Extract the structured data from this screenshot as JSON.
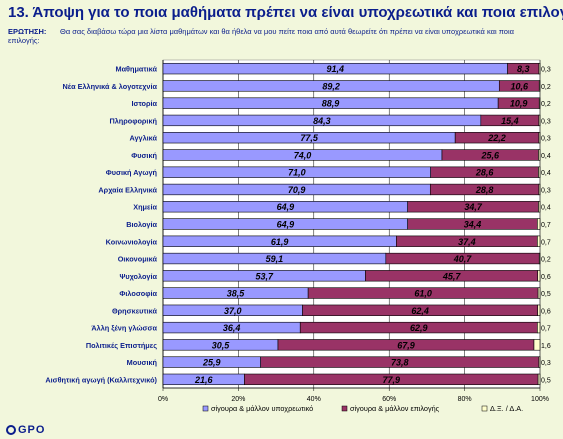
{
  "header": {
    "title": "13.  Άποψη για το ποια μαθήματα πρέπει να είναι υποχρεωτικά και ποια επιλογής",
    "question_label": "ΕΡΩΤΗΣΗ:",
    "question_text": "Θα σας διαβάσω τώρα μια λίστα μαθημάτων και θα ήθελα να μου πείτε ποια από αυτά θεωρείτε ότι πρέπει να είναι υποχρεωτικά και ποια",
    "question_text_cont": "επιλογής:"
  },
  "logo": {
    "text": "GPO"
  },
  "colors": {
    "compulsory": "#9999ff",
    "elective": "#993366",
    "dk": "#ffffcc",
    "border": "#000000",
    "grid": "#000000",
    "label": "#0b1e8c"
  },
  "chart_data": {
    "type": "bar",
    "orientation": "horizontal",
    "stacked": true,
    "xlim": [
      0,
      100
    ],
    "x_ticks": [
      "0%",
      "20%",
      "40%",
      "60%",
      "80%",
      "100%"
    ],
    "categories": [
      "Μαθηματικά",
      "Νέα Ελληνικά & λογοτεχνία",
      "Ιστορία",
      "Πληροφορική",
      "Αγγλικά",
      "Φυσική",
      "Φυσική Αγωγή",
      "Αρχαία Ελληνικά",
      "Χημεία",
      "Βιολογία",
      "Κοινωνιολογία",
      "Οικονομικά",
      "Ψυχολογία",
      "Φιλοσοφία",
      "Θρησκευτικά",
      "Άλλη ξένη γλώσσα",
      "Πολιτικές Επιστήμες",
      "Μουσική",
      "Αισθητική αγωγή (Καλλιτεχνικό)"
    ],
    "series": [
      {
        "name": "σίγουρα & μάλλον υποχρεωτικό",
        "values": [
          91.4,
          89.2,
          88.9,
          84.3,
          77.5,
          74.0,
          71.0,
          70.9,
          64.9,
          64.9,
          61.9,
          59.1,
          53.7,
          38.5,
          37.0,
          36.4,
          30.5,
          25.9,
          21.6
        ],
        "labels": [
          "91,4",
          "89,2",
          "88,9",
          "84,3",
          "77,5",
          "74,0",
          "71,0",
          "70,9",
          "64,9",
          "64,9",
          "61,9",
          "59,1",
          "53,7",
          "38,5",
          "37,0",
          "36,4",
          "30,5",
          "25,9",
          "21,6"
        ]
      },
      {
        "name": "σίγουρα & μάλλον επιλογής",
        "values": [
          8.3,
          10.6,
          10.9,
          15.4,
          22.2,
          25.6,
          28.6,
          28.8,
          34.7,
          34.4,
          37.4,
          40.7,
          45.7,
          61.0,
          62.4,
          62.9,
          67.9,
          73.8,
          77.9
        ],
        "labels": [
          "8,3",
          "10,6",
          "10,9",
          "15,4",
          "22,2",
          "25,6",
          "28,6",
          "28,8",
          "34,7",
          "34,4",
          "37,4",
          "40,7",
          "45,7",
          "61,0",
          "62,4",
          "62,9",
          "67,9",
          "73,8",
          "77,9"
        ]
      },
      {
        "name": "Δ.Ξ. / Δ.Α.",
        "values": [
          0.3,
          0.2,
          0.2,
          0.3,
          0.3,
          0.4,
          0.4,
          0.3,
          0.4,
          0.7,
          0.7,
          0.2,
          0.6,
          0.5,
          0.6,
          0.7,
          1.6,
          0.3,
          0.5
        ],
        "labels": [
          "0,3",
          "0,2",
          "0,2",
          "0,3",
          "0,3",
          "0,4",
          "0,4",
          "0,3",
          "0,4",
          "0,7",
          "0,7",
          "0,2",
          "0,6",
          "0,5",
          "0,6",
          "0,7",
          "1,6",
          "0,3",
          "0,5"
        ]
      }
    ],
    "legend_position": "bottom",
    "grid": true
  }
}
